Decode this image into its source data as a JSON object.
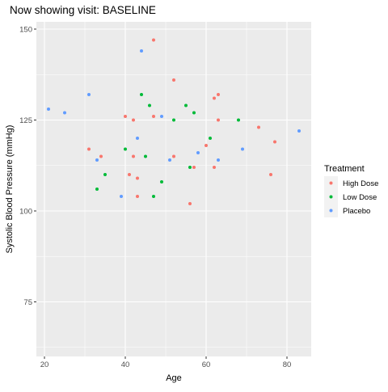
{
  "chart_data": {
    "type": "scatter",
    "title": "Now showing visit: BASELINE",
    "xlabel": "Age",
    "ylabel": "Systolic Blood Pressure (mmHg)",
    "xlim": [
      18,
      86
    ],
    "ylim": [
      60,
      152
    ],
    "x_ticks": [
      20,
      40,
      60,
      80
    ],
    "y_ticks": [
      75,
      100,
      125,
      150
    ],
    "grid": true,
    "legend_title": "Treatment",
    "legend_position": "right",
    "series": [
      {
        "name": "High Dose",
        "color": "#F8766D",
        "points": [
          [
            31,
            117
          ],
          [
            34,
            115
          ],
          [
            40,
            126
          ],
          [
            41,
            110
          ],
          [
            42,
            125
          ],
          [
            42,
            115
          ],
          [
            43,
            109
          ],
          [
            43,
            104
          ],
          [
            47,
            147
          ],
          [
            47,
            126
          ],
          [
            52,
            136
          ],
          [
            52,
            115
          ],
          [
            56,
            102
          ],
          [
            57,
            112
          ],
          [
            60,
            118
          ],
          [
            62,
            131
          ],
          [
            62,
            112
          ],
          [
            63,
            132
          ],
          [
            63,
            125
          ],
          [
            73,
            123
          ],
          [
            76,
            110
          ],
          [
            77,
            119
          ]
        ]
      },
      {
        "name": "Low Dose",
        "color": "#00BA38",
        "points": [
          [
            33,
            106
          ],
          [
            35,
            110
          ],
          [
            40,
            117
          ],
          [
            44,
            132
          ],
          [
            45,
            115
          ],
          [
            46,
            129
          ],
          [
            47,
            104
          ],
          [
            49,
            108
          ],
          [
            52,
            125
          ],
          [
            55,
            129
          ],
          [
            56,
            112
          ],
          [
            57,
            127
          ],
          [
            61,
            120
          ],
          [
            68,
            125
          ]
        ]
      },
      {
        "name": "Placebo",
        "color": "#619CFF",
        "points": [
          [
            21,
            128
          ],
          [
            25,
            127
          ],
          [
            31,
            132
          ],
          [
            33,
            114
          ],
          [
            39,
            104
          ],
          [
            43,
            120
          ],
          [
            44,
            144
          ],
          [
            49,
            126
          ],
          [
            51,
            114
          ],
          [
            58,
            116
          ],
          [
            63,
            114
          ],
          [
            69,
            117
          ],
          [
            83,
            122
          ]
        ]
      }
    ]
  }
}
